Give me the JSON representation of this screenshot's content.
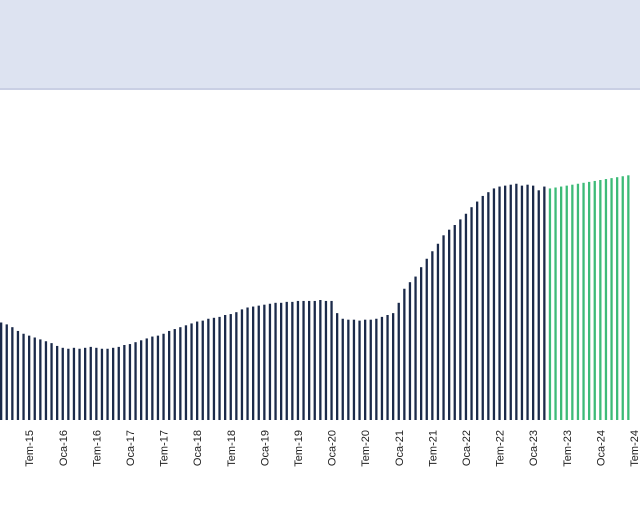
{
  "chart_data": {
    "type": "bar",
    "title": "",
    "xlabel": "",
    "ylabel": "",
    "grid": false,
    "legend": "none",
    "colors": {
      "historical": "#1b2a4a",
      "forecast": "#3dbb78",
      "header_band": "#dde3f1"
    },
    "tick_labels": [
      "Tem-15",
      "Oca-16",
      "Tem-16",
      "Oca-17",
      "Tem-17",
      "Oca-18",
      "Tem-18",
      "Oca-19",
      "Tem-19",
      "Oca-20",
      "Tem-20",
      "Oca-21",
      "Tem-21",
      "Oca-22",
      "Tem-22",
      "Oca-23",
      "Tem-23",
      "Oca-24",
      "Tem-24"
    ],
    "ylim": [
      0,
      320
    ],
    "series": [
      {
        "values": [
          104,
          102,
          99,
          95,
          92,
          90,
          88,
          86,
          84,
          82,
          79,
          77,
          76,
          77,
          76,
          77,
          78,
          77,
          76,
          76,
          77,
          78,
          80,
          81,
          83,
          85,
          87,
          89,
          90,
          92,
          95,
          97,
          99,
          101,
          103,
          105,
          106,
          108,
          109,
          110,
          112,
          113,
          115,
          118,
          120,
          121,
          122,
          123,
          124,
          125,
          125,
          126,
          126,
          127,
          127,
          127,
          127,
          128,
          127,
          127,
          114,
          108,
          107,
          107,
          106,
          107,
          107,
          108,
          110,
          112,
          114,
          125,
          140,
          147,
          153,
          163,
          172,
          180,
          188,
          197,
          203,
          208,
          214,
          220,
          227,
          233,
          239,
          243,
          247,
          249,
          250,
          251,
          252,
          250,
          251,
          250,
          245,
          249
        ]
      },
      {
        "values": [
          247,
          248,
          249,
          250,
          251,
          252,
          253,
          254,
          255,
          256,
          257,
          258,
          259,
          260,
          261
        ]
      }
    ]
  }
}
